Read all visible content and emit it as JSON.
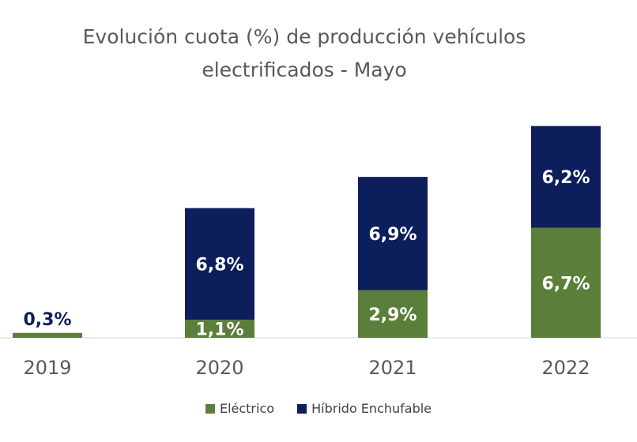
{
  "chart_data": {
    "type": "bar",
    "stacked": true,
    "title": "Evolución cuota (%) de producción vehículos electrificados - Mayo",
    "title_lines": [
      "Evolución cuota (%) de producción vehículos",
      "electrificados - Mayo"
    ],
    "categories": [
      "2019",
      "2020",
      "2021",
      "2022"
    ],
    "series": [
      {
        "name": "Eléctrico",
        "color": "#5b7f3a",
        "values": [
          null,
          1.1,
          2.9,
          6.7
        ],
        "labels": [
          "",
          "1,1%",
          "2,9%",
          "6,7%"
        ]
      },
      {
        "name": "Híbrido Enchufable",
        "color": "#0c1e5b",
        "values": [
          null,
          6.8,
          6.9,
          6.2
        ],
        "labels": [
          "",
          "6,8%",
          "6,9%",
          "6,2%"
        ]
      }
    ],
    "annotations": [
      {
        "category": "2019",
        "label": "0,3%",
        "value": 0.3,
        "bar_color": "#5b7f3a"
      }
    ],
    "xlabel": "",
    "ylabel": "",
    "ylim": [
      0,
      13
    ],
    "grid": false,
    "legend_position": "bottom"
  }
}
